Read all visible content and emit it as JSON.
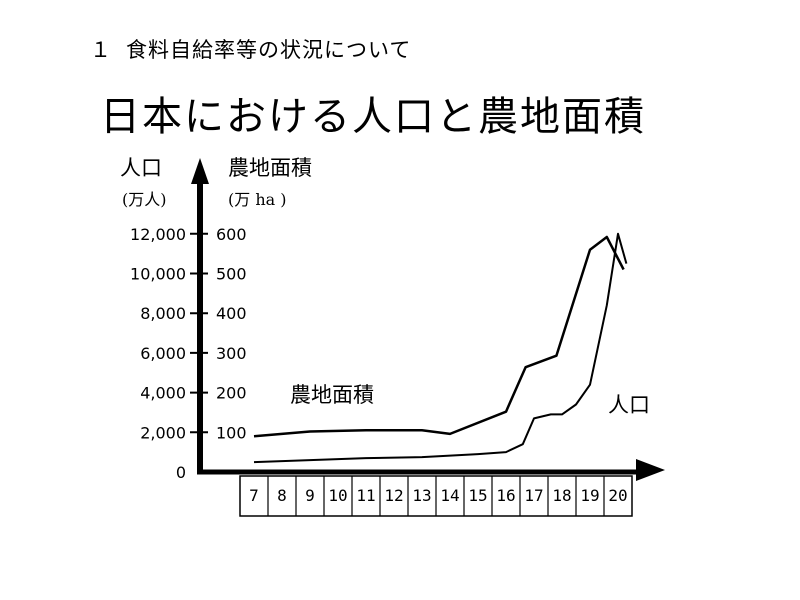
{
  "header": {
    "number": "１",
    "subtitle": "食料自給率等の状況について",
    "title": "日本における人口と農地面積"
  },
  "chart_data": {
    "type": "line",
    "left_axis": {
      "label": "人口",
      "unit": "(万人)",
      "ticks": [
        "0",
        "2,000",
        "4,000",
        "6,000",
        "8,000",
        "10,000",
        "12,000"
      ],
      "ylim": [
        0,
        12000
      ]
    },
    "right_axis": {
      "label": "農地面積",
      "unit": "(万 ha )",
      "ticks": [
        "100",
        "200",
        "300",
        "400",
        "500",
        "600"
      ],
      "ylim": [
        0,
        600
      ]
    },
    "categories": [
      "7",
      "8",
      "9",
      "10",
      "11",
      "12",
      "13",
      "14",
      "15",
      "16",
      "17",
      "18",
      "19",
      "20"
    ],
    "series": [
      {
        "name": "農地面積",
        "axis": "right",
        "color": "#000000",
        "x": [
          7,
          9,
          11,
          13,
          14,
          16,
          16.7,
          17.8,
          19,
          19.6,
          20.2
        ],
        "y": [
          90,
          102,
          105,
          105,
          96,
          152,
          264,
          293,
          560,
          592,
          510
        ]
      },
      {
        "name": "人口",
        "axis": "left",
        "color": "#000000",
        "x": [
          7,
          9,
          11,
          13,
          15,
          16,
          16.6,
          17,
          17.6,
          18,
          18.5,
          19,
          19.6,
          20,
          20.3
        ],
        "y": [
          500,
          600,
          700,
          750,
          900,
          1000,
          1400,
          2700,
          2900,
          2900,
          3400,
          4400,
          8400,
          12000,
          10500
        ]
      }
    ]
  }
}
